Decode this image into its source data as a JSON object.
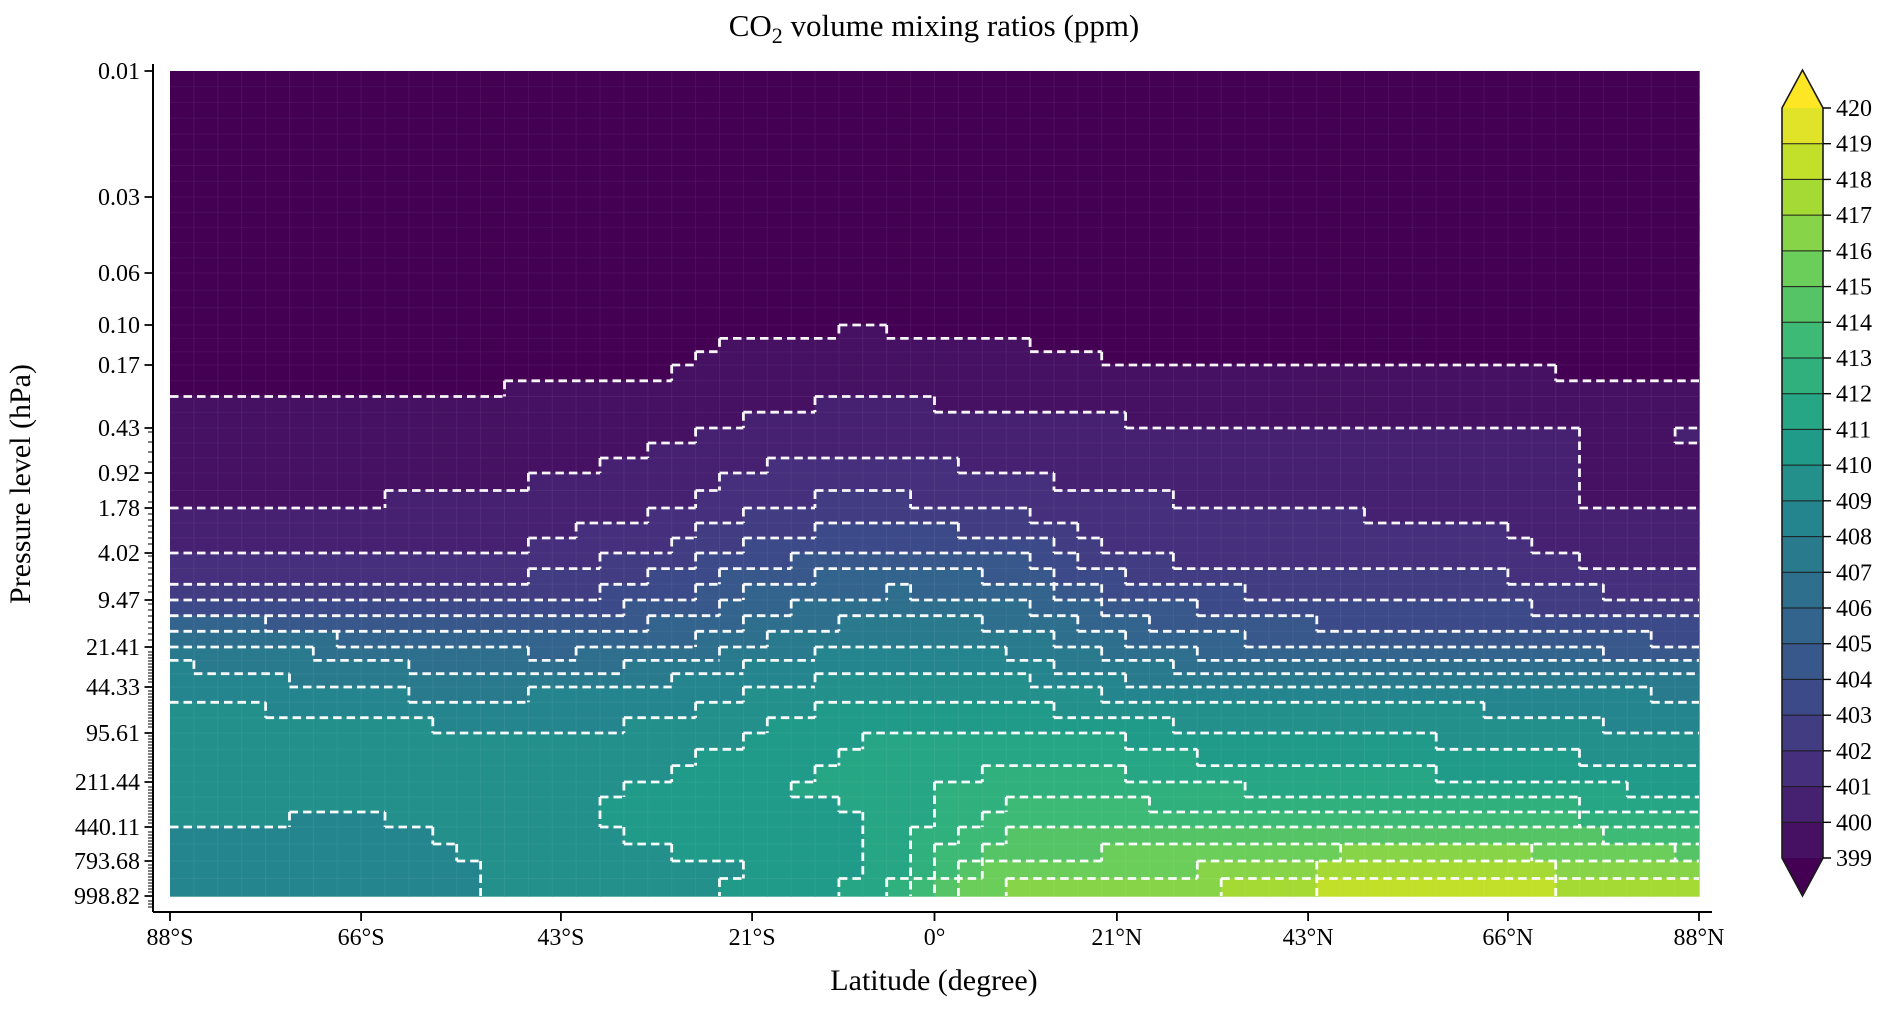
{
  "figure": {
    "background": "#ffffff",
    "text_color": "#000000"
  },
  "chart_data": {
    "type": "contour",
    "title": {
      "prefix": "CO",
      "subscript": "2",
      "suffix": " volume mixing ratios (ppm)"
    },
    "xlabel": "Latitude (degree)",
    "ylabel": "Pressure level (hPa)",
    "x_tick_labels": [
      "88°S",
      "66°S",
      "43°S",
      "21°S",
      "0°",
      "21°N",
      "43°N",
      "66°N",
      "88°N"
    ],
    "x_tick_lats": [
      -88,
      -66,
      -43,
      -21,
      0,
      21,
      43,
      66,
      88
    ],
    "y_tick_labels": [
      "0.01",
      "0.03",
      "0.06",
      "0.10",
      "0.17",
      "0.43",
      "0.92",
      "1.78",
      "4.02",
      "9.47",
      "21.41",
      "44.33",
      "95.61",
      "211.44",
      "440.11",
      "793.68",
      "998.82"
    ],
    "pressure_levels_hpa": [
      0.01,
      0.03,
      0.06,
      0.1,
      0.17,
      0.43,
      0.92,
      1.78,
      4.02,
      9.47,
      21.41,
      44.33,
      95.61,
      211.44,
      440.11,
      793.68,
      998.82
    ],
    "level_axis_fraction": [
      0,
      0.1527,
      0.2448,
      0.3079,
      0.3564,
      0.4327,
      0.4873,
      0.5297,
      0.5842,
      0.6412,
      0.6982,
      0.7467,
      0.8024,
      0.8618,
      0.9164,
      0.9576,
      1.0
    ],
    "latitudes_deg": [
      -88,
      -66,
      -55,
      -43,
      -30,
      -21,
      -10,
      -5,
      0,
      5,
      10,
      21,
      30,
      43,
      55,
      66,
      77,
      88
    ],
    "co2_ppm_grid": [
      [
        398.6,
        398.6,
        398.6,
        398.6,
        398.6,
        398.6,
        398.6,
        398.6,
        398.6,
        398.6,
        398.6,
        398.6,
        398.6,
        398.6,
        398.6,
        398.6,
        398.6,
        398.6
      ],
      [
        398.6,
        398.6,
        398.6,
        398.6,
        398.6,
        398.6,
        398.6,
        398.6,
        398.6,
        398.6,
        398.6,
        398.6,
        398.6,
        398.6,
        398.6,
        398.6,
        398.6,
        398.6
      ],
      [
        398.6,
        398.6,
        398.6,
        398.6,
        398.6,
        398.65,
        398.7,
        398.7,
        398.7,
        398.65,
        398.65,
        398.6,
        398.6,
        398.6,
        398.6,
        398.6,
        398.6,
        398.6
      ],
      [
        398.7,
        398.7,
        398.7,
        398.7,
        398.7,
        398.8,
        398.9,
        398.9,
        398.85,
        398.8,
        398.8,
        398.75,
        398.75,
        398.7,
        398.7,
        398.7,
        398.7,
        398.7
      ],
      [
        398.7,
        398.7,
        398.7,
        398.75,
        398.9,
        399.35,
        399.55,
        399.55,
        399.5,
        399.35,
        399.25,
        399.0,
        398.95,
        398.9,
        398.9,
        398.9,
        398.8,
        398.8
      ],
      [
        399.2,
        399.3,
        399.4,
        399.5,
        399.7,
        400.2,
        400.4,
        400.4,
        400.35,
        400.25,
        400.2,
        400.15,
        400.12,
        400.1,
        400.1,
        400.1,
        400.0,
        400.05
      ],
      [
        399.7,
        399.8,
        399.85,
        399.95,
        400.5,
        401.1,
        401.35,
        401.3,
        401.2,
        401.0,
        400.9,
        400.7,
        400.6,
        400.5,
        400.45,
        400.4,
        399.8,
        399.85
      ],
      [
        400.1,
        400.05,
        400.1,
        400.4,
        401.0,
        401.9,
        402.35,
        402.3,
        402.15,
        401.9,
        401.7,
        401.3,
        401.1,
        400.95,
        400.9,
        400.85,
        399.9,
        400.0
      ],
      [
        400.9,
        400.85,
        400.9,
        401.3,
        402.3,
        403.4,
        404.25,
        404.35,
        404.2,
        404.0,
        403.7,
        401.9,
        401.55,
        401.4,
        401.3,
        401.25,
        400.5,
        400.6
      ],
      [
        403.1,
        402.6,
        402.5,
        403.0,
        404.1,
        405.3,
        406.25,
        406.35,
        406.3,
        406.1,
        405.7,
        404.3,
        403.6,
        403.0,
        402.9,
        402.8,
        402.3,
        402.2
      ],
      [
        407.6,
        406.6,
        406.0,
        405.5,
        406.2,
        407.2,
        408.15,
        408.25,
        408.2,
        408.0,
        407.6,
        406.4,
        405.6,
        405.0,
        404.9,
        404.75,
        404.4,
        404.3
      ],
      [
        408.6,
        407.9,
        407.6,
        407.9,
        408.3,
        408.9,
        409.55,
        409.65,
        409.55,
        409.45,
        409.3,
        408.4,
        408.0,
        408.6,
        408.5,
        408.3,
        407.9,
        407.7
      ],
      [
        410.05,
        409.55,
        409.2,
        409.0,
        409.4,
        410.0,
        410.85,
        411.0,
        410.8,
        410.9,
        411.15,
        410.8,
        410.2,
        409.9,
        409.85,
        409.6,
        409.2,
        409.0
      ],
      [
        409.6,
        409.2,
        409.4,
        409.7,
        410.1,
        410.7,
        411.4,
        411.9,
        411.8,
        412.25,
        412.6,
        412.4,
        411.8,
        411.4,
        411.3,
        411.0,
        410.6,
        410.4
      ],
      [
        409.0,
        408.9,
        409.1,
        409.9,
        410.4,
        410.85,
        410.7,
        411.2,
        412.2,
        413.3,
        413.8,
        413.9,
        413.6,
        413.9,
        414.2,
        414.0,
        413.2,
        412.9
      ],
      [
        408.8,
        408.6,
        408.9,
        409.3,
        409.9,
        409.9,
        410.6,
        411.5,
        412.9,
        414.3,
        415.2,
        415.4,
        415.5,
        416.4,
        417.2,
        417.0,
        416.1,
        415.6
      ],
      [
        408.2,
        408.3,
        408.8,
        409.4,
        409.8,
        410.2,
        411.2,
        412.2,
        414.2,
        415.9,
        417.2,
        417.0,
        417.1,
        418.3,
        419.4,
        419.2,
        418.1,
        417.4
      ]
    ],
    "contour_interval_ppm": 1,
    "contour_line_style": {
      "color": "#ffffff",
      "dash": "dashed"
    },
    "colorbar": {
      "min": 399,
      "max": 420,
      "tick_values": [
        399,
        400,
        401,
        402,
        403,
        404,
        405,
        406,
        407,
        408,
        409,
        410,
        411,
        412,
        413,
        414,
        415,
        416,
        417,
        418,
        419,
        420
      ],
      "extend": "both"
    },
    "colormap": {
      "name": "viridis",
      "stops": [
        "#440154",
        "#482878",
        "#3e4989",
        "#31688e",
        "#26828e",
        "#1f9e89",
        "#35b779",
        "#6ece58",
        "#b5de2b",
        "#fde725"
      ]
    }
  }
}
